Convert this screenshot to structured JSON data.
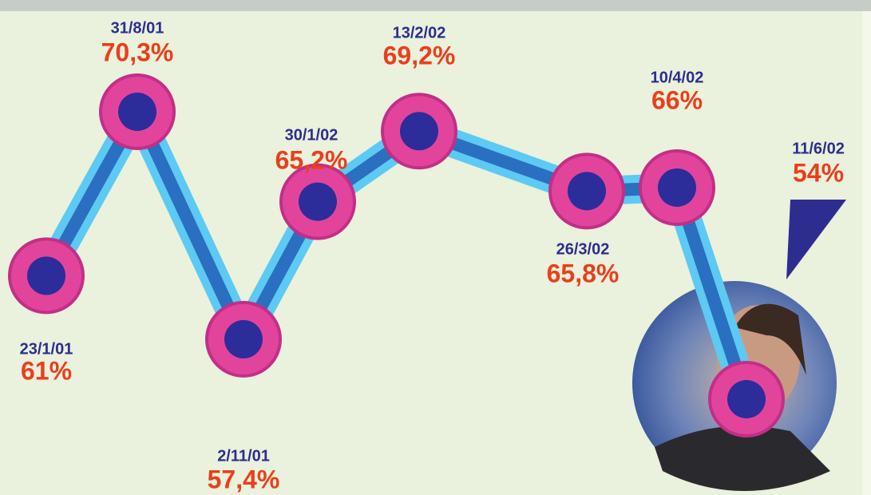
{
  "chart_data": {
    "type": "line",
    "categories": [
      "23/1/01",
      "31/8/01",
      "2/11/01",
      "30/1/02",
      "13/2/02",
      "26/3/02",
      "10/4/02",
      "11/6/02"
    ],
    "values": [
      61,
      70.3,
      57.4,
      65.2,
      69.2,
      65.8,
      66,
      54
    ],
    "value_labels": [
      "61%",
      "70,3%",
      "57,4%",
      "65,2%",
      "69,2%",
      "65,8%",
      "66%",
      "54%"
    ],
    "color": "#2a6fc0"
  }
}
